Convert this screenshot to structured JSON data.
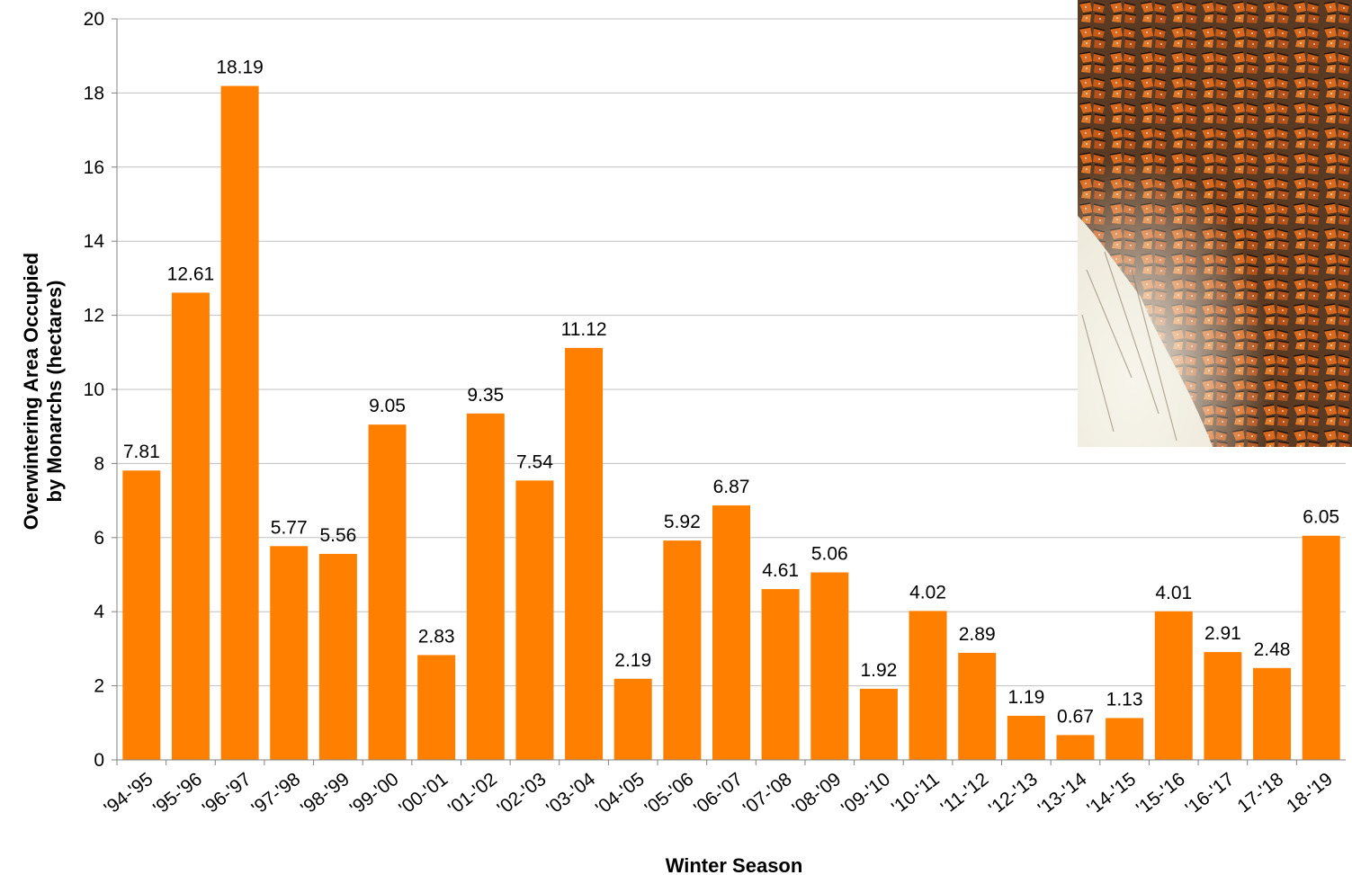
{
  "chart_data": {
    "type": "bar",
    "categories": [
      "'94-'95",
      "'95-'96",
      "'96-'97",
      "'97-'98",
      "'98-'99",
      "'99-'00",
      "'00-'01",
      "'01-'02",
      "'02-'03",
      "'03-'04",
      "'04-'05",
      "'05-'06",
      "'06-'07",
      "'07-'08",
      "'08-'09",
      "'09-'10",
      "'10-'11",
      "'11-'12",
      "'12-'13",
      "'13-'14",
      "'14-'15",
      "'15-'16",
      "'16-'17",
      "17-'18",
      "18-'19"
    ],
    "values": [
      7.81,
      12.61,
      18.19,
      5.77,
      5.56,
      9.05,
      2.83,
      9.35,
      7.54,
      11.12,
      2.19,
      5.92,
      6.87,
      4.61,
      5.06,
      1.92,
      4.02,
      2.89,
      1.19,
      0.67,
      1.13,
      4.01,
      2.91,
      2.48,
      6.05
    ],
    "data_labels": [
      "7.81",
      "12.61",
      "18.19",
      "5.77",
      "5.56",
      "9.05",
      "2.83",
      "9.35",
      "7.54",
      "11.12",
      "2.19",
      "5.92",
      "6.87",
      "4.61",
      "5.06",
      "1.92",
      "4.02",
      "2.89",
      "1.19",
      "0.67",
      "1.13",
      "4.01",
      "2.91",
      "2.48",
      "6.05"
    ],
    "title": "",
    "xlabel": "Winter Season",
    "ylabel_line1": "Overwintering  Area Occupied",
    "ylabel_line2": "by Monarchs (hectares)",
    "ylim": [
      0,
      20
    ],
    "yticks": [
      "0",
      "2",
      "4",
      "6",
      "8",
      "10",
      "12",
      "14",
      "16",
      "18",
      "20"
    ],
    "grid": true,
    "legend": "none",
    "bar_color": "#ff8000",
    "grid_color": "#c0c0c0"
  },
  "photo": {
    "icon": "monarch-butterfly-cluster-photo"
  }
}
